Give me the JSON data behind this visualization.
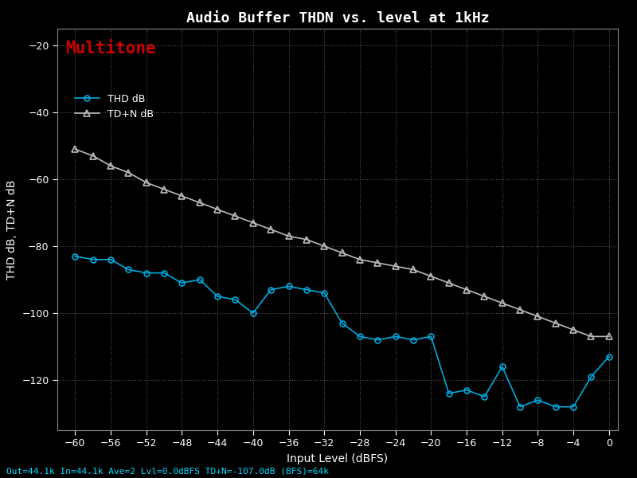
{
  "title": "Audio Buffer THDN vs. level at 1kHz",
  "ylabel": "THD dB, TD+N dB",
  "xlabel": "Input Level (dBFS)",
  "background_color": "#000000",
  "grid_color": "#555555",
  "title_color": "#ffffff",
  "label_color": "#ffffff",
  "tick_color": "#ffffff",
  "multitone_color": "#cc0000",
  "bottom_text": "Out=44.1k In=44.1k Ave=2 Lvl=0.0dBFS TD+N=-107.0dB (BFS)=64k",
  "bottom_text_color": "#00ddff",
  "xlim": [
    -62,
    1
  ],
  "ylim": [
    -135,
    -15
  ],
  "xticks": [
    -60,
    -56,
    -52,
    -48,
    -44,
    -40,
    -36,
    -32,
    -28,
    -24,
    -20,
    -16,
    -12,
    -8,
    -4,
    0
  ],
  "yticks": [
    -20,
    -40,
    -60,
    -80,
    -100,
    -120
  ],
  "thd_x": [
    -60,
    -58,
    -56,
    -54,
    -52,
    -50,
    -48,
    -46,
    -44,
    -42,
    -40,
    -38,
    -36,
    -34,
    -32,
    -30,
    -28,
    -26,
    -24,
    -22,
    -20,
    -18,
    -16,
    -14,
    -12,
    -10,
    -8,
    -6,
    -4,
    -2,
    0
  ],
  "thd_y": [
    -83,
    -84,
    -84,
    -87,
    -88,
    -88,
    -91,
    -90,
    -95,
    -96,
    -100,
    -93,
    -92,
    -93,
    -94,
    -103,
    -107,
    -108,
    -107,
    -108,
    -107,
    -124,
    -123,
    -125,
    -116,
    -128,
    -126,
    -128,
    -128,
    -119,
    -113
  ],
  "tdn_x": [
    -60,
    -58,
    -56,
    -54,
    -52,
    -50,
    -48,
    -46,
    -44,
    -42,
    -40,
    -38,
    -36,
    -34,
    -32,
    -30,
    -28,
    -26,
    -24,
    -22,
    -20,
    -18,
    -16,
    -14,
    -12,
    -10,
    -8,
    -6,
    -4,
    -2,
    0
  ],
  "tdn_y": [
    -51,
    -53,
    -56,
    -58,
    -61,
    -63,
    -65,
    -67,
    -69,
    -71,
    -73,
    -75,
    -77,
    -78,
    -80,
    -82,
    -84,
    -85,
    -86,
    -87,
    -89,
    -91,
    -93,
    -95,
    -97,
    -99,
    -101,
    -103,
    -105,
    -107,
    -107
  ],
  "thd_color": "#00aadd",
  "tdn_color": "#bbbbbb",
  "thd_label": "THD dB",
  "tdn_label": "TD+N dB"
}
